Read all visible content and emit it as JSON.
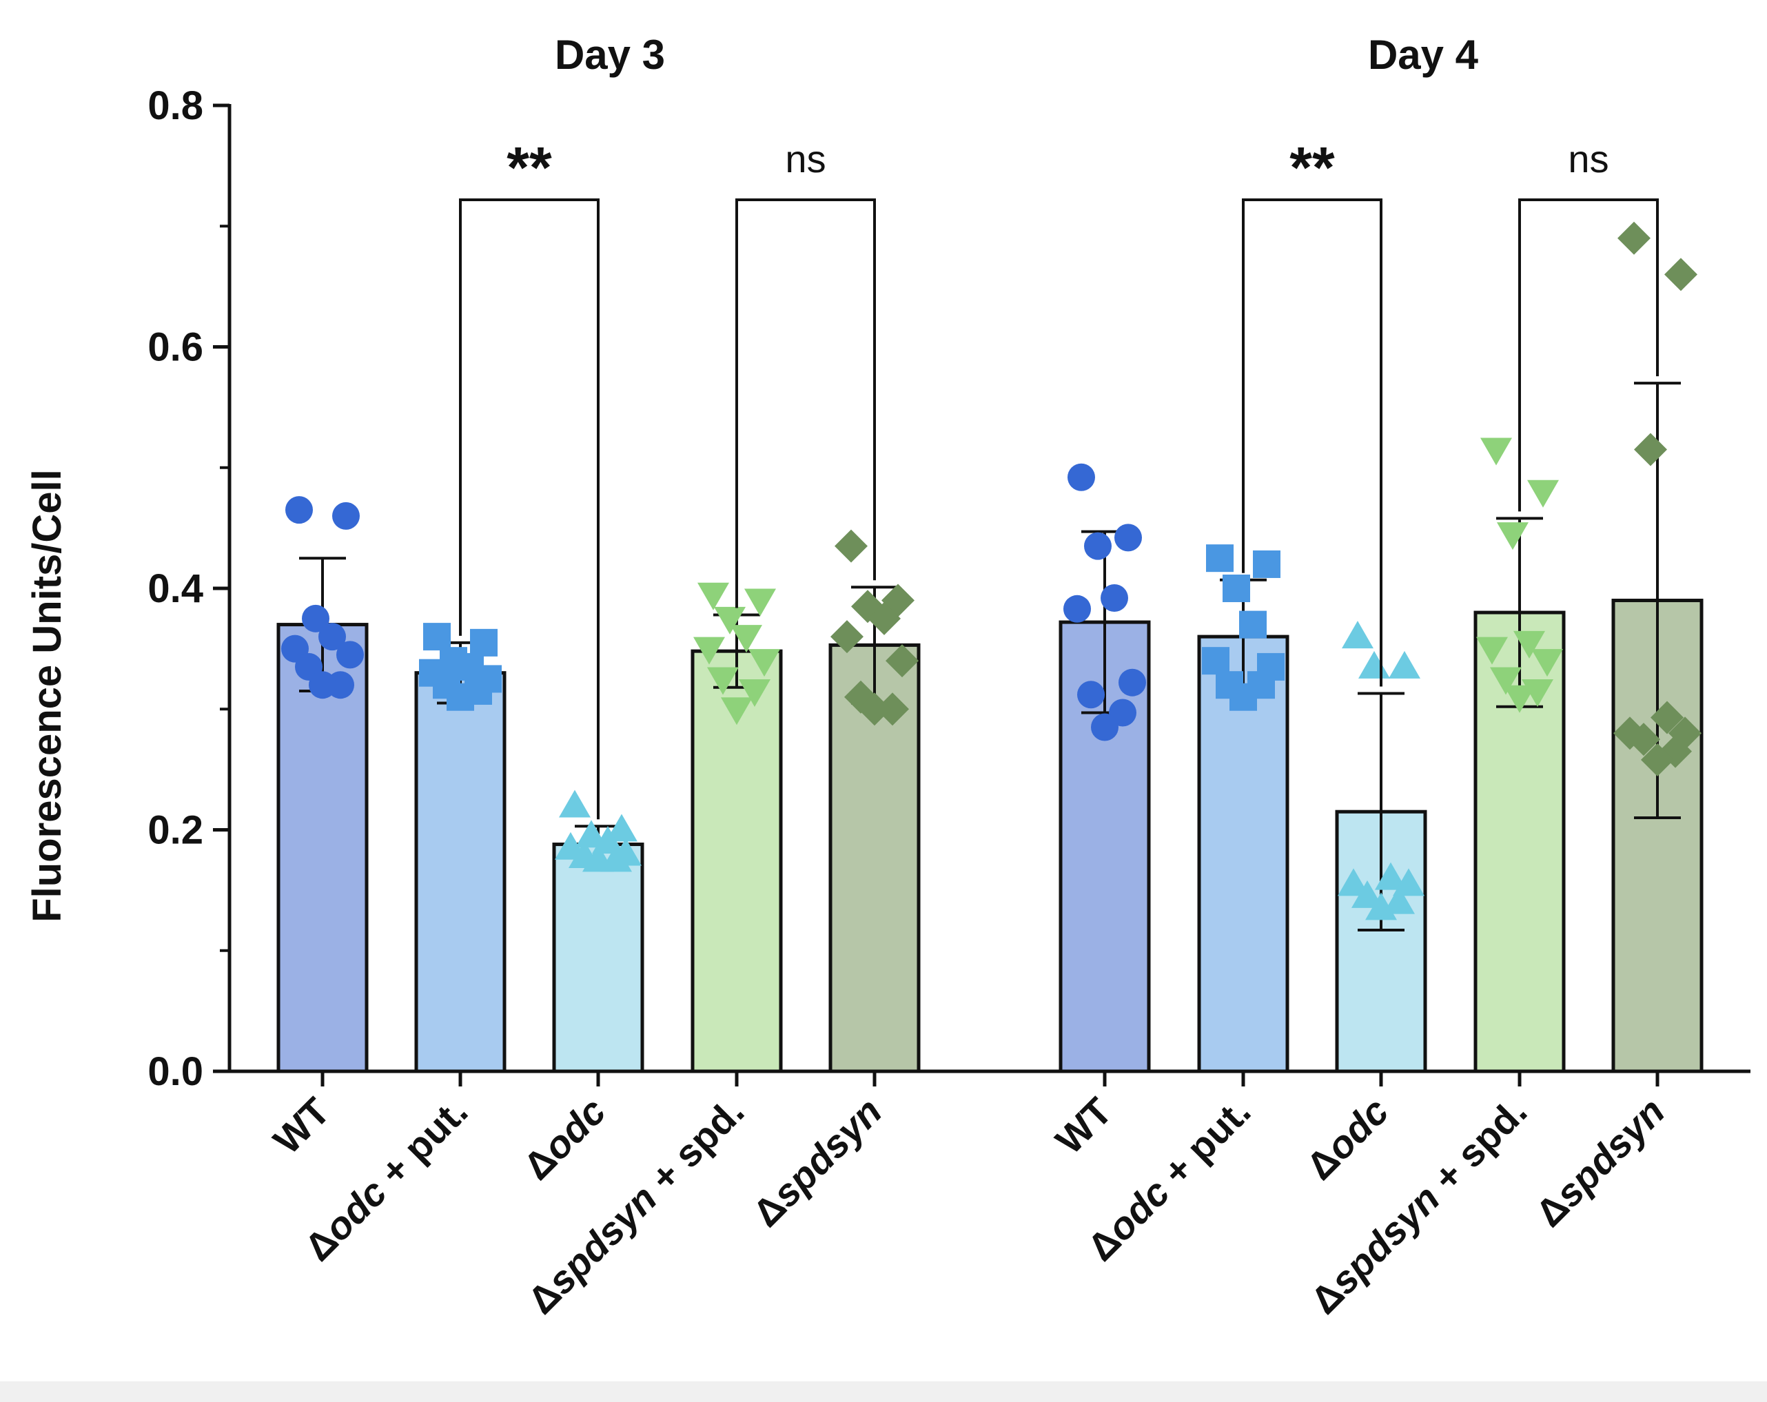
{
  "chart_data": {
    "type": "bar",
    "ylabel": "Fluorescence Units/Cell",
    "xlabel": "",
    "ylim": [
      0,
      0.8
    ],
    "yticks": [
      0.0,
      0.2,
      0.4,
      0.6,
      0.8
    ],
    "ytick_labels": [
      "0.0",
      "0.2",
      "0.4",
      "0.6",
      "0.8"
    ],
    "grid": false,
    "groups": [
      {
        "title": "Day 3",
        "bars": [
          {
            "label": "WT",
            "label_parts": [
              {
                "t": "WT",
                "i": false
              }
            ],
            "mean": 0.37,
            "err": 0.055,
            "color": "#9BB1E5",
            "marker": "circle",
            "marker_color": "#3568D4",
            "points": [
              0.465,
              0.46,
              0.375,
              0.36,
              0.35,
              0.345,
              0.335,
              0.32,
              0.32
            ]
          },
          {
            "label": "Δodc + put.",
            "label_parts": [
              {
                "t": "Δ",
                "i": false
              },
              {
                "t": "odc",
                "i": true
              },
              {
                "t": " + put.",
                "i": false
              }
            ],
            "mean": 0.33,
            "err": 0.025,
            "color": "#A8CBF0",
            "marker": "square",
            "marker_color": "#4A97E2",
            "points": [
              0.36,
              0.355,
              0.34,
              0.335,
              0.33,
              0.325,
              0.32,
              0.315,
              0.31
            ]
          },
          {
            "label": "Δodc",
            "label_parts": [
              {
                "t": "Δ",
                "i": false
              },
              {
                "t": "odc",
                "i": true
              }
            ],
            "mean": 0.188,
            "err": 0.015,
            "color": "#BDE5F1",
            "marker": "triangle",
            "marker_color": "#6CCBE2",
            "points": [
              0.22,
              0.2,
              0.195,
              0.19,
              0.185,
              0.18,
              0.178,
              0.175,
              0.175
            ]
          },
          {
            "label": "Δspdsyn + spd.",
            "label_parts": [
              {
                "t": "Δ",
                "i": false
              },
              {
                "t": "spdsyn",
                "i": true
              },
              {
                "t": " + spd.",
                "i": false
              }
            ],
            "mean": 0.348,
            "err": 0.03,
            "color": "#C9E8B9",
            "marker": "triangle-down",
            "marker_color": "#8ED27A",
            "points": [
              0.395,
              0.39,
              0.375,
              0.36,
              0.35,
              0.34,
              0.325,
              0.315,
              0.3
            ]
          },
          {
            "label": "Δspdsyn",
            "label_parts": [
              {
                "t": "Δ",
                "i": false
              },
              {
                "t": "spdsyn",
                "i": true
              }
            ],
            "mean": 0.353,
            "err": 0.048,
            "color": "#B6C6A8",
            "marker": "diamond",
            "marker_color": "#6E8F5A",
            "points": [
              0.435,
              0.39,
              0.385,
              0.375,
              0.36,
              0.34,
              0.31,
              0.3,
              0.3
            ]
          }
        ],
        "comparisons": [
          {
            "from": 1,
            "to": 2,
            "label": "**"
          },
          {
            "from": 3,
            "to": 4,
            "label": "ns"
          }
        ]
      },
      {
        "title": "Day 4",
        "bars": [
          {
            "label": "WT",
            "label_parts": [
              {
                "t": "WT",
                "i": false
              }
            ],
            "mean": 0.372,
            "err": 0.075,
            "color": "#9BB1E5",
            "marker": "circle",
            "marker_color": "#3568D4",
            "points": [
              0.492,
              0.442,
              0.435,
              0.392,
              0.383,
              0.322,
              0.312,
              0.297,
              0.285
            ]
          },
          {
            "label": "Δodc + put.",
            "label_parts": [
              {
                "t": "Δ",
                "i": false
              },
              {
                "t": "odc",
                "i": true
              },
              {
                "t": " + put.",
                "i": false
              }
            ],
            "mean": 0.36,
            "err": 0.047,
            "color": "#A8CBF0",
            "marker": "square",
            "marker_color": "#4A97E2",
            "points": [
              0.425,
              0.42,
              0.4,
              0.37,
              0.34,
              0.335,
              0.32,
              0.32,
              0.31
            ]
          },
          {
            "label": "Δodc",
            "label_parts": [
              {
                "t": "Δ",
                "i": false
              },
              {
                "t": "odc",
                "i": true
              }
            ],
            "mean": 0.215,
            "err": 0.098,
            "color": "#BDE5F1",
            "marker": "triangle",
            "marker_color": "#6CCBE2",
            "points": [
              0.36,
              0.335,
              0.335,
              0.16,
              0.155,
              0.155,
              0.145,
              0.14,
              0.135
            ]
          },
          {
            "label": "Δspdsyn + spd.",
            "label_parts": [
              {
                "t": "Δ",
                "i": false
              },
              {
                "t": "spdsyn",
                "i": true
              },
              {
                "t": " + spd.",
                "i": false
              }
            ],
            "mean": 0.38,
            "err": 0.078,
            "color": "#C9E8B9",
            "marker": "triangle-down",
            "marker_color": "#8ED27A",
            "points": [
              0.515,
              0.48,
              0.445,
              0.355,
              0.35,
              0.34,
              0.325,
              0.315,
              0.31
            ]
          },
          {
            "label": "Δspdsyn",
            "label_parts": [
              {
                "t": "Δ",
                "i": false
              },
              {
                "t": "spdsyn",
                "i": true
              }
            ],
            "mean": 0.39,
            "err": 0.18,
            "color": "#B6C6A8",
            "marker": "diamond",
            "marker_color": "#6E8F5A",
            "points": [
              0.69,
              0.66,
              0.515,
              0.293,
              0.28,
              0.28,
              0.275,
              0.265,
              0.258
            ]
          }
        ],
        "comparisons": [
          {
            "from": 1,
            "to": 2,
            "label": "**"
          },
          {
            "from": 3,
            "to": 4,
            "label": "ns"
          }
        ]
      }
    ]
  }
}
